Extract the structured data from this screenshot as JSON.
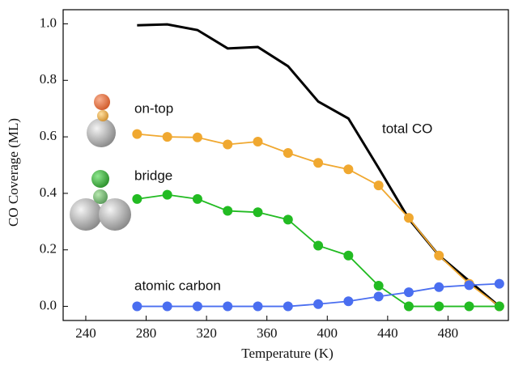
{
  "chart_data": {
    "type": "line",
    "x_label": "Temperature (K)",
    "y_label": "CO Coverage (ML)",
    "x": [
      274,
      294,
      314,
      334,
      354,
      374,
      394,
      414,
      434,
      454,
      474,
      494,
      514
    ],
    "xlim": [
      225,
      520
    ],
    "xticks": [
      240,
      280,
      320,
      360,
      400,
      440,
      480
    ],
    "ylim": [
      -0.05,
      1.05
    ],
    "yticks": [
      {
        "value": 0,
        "label": "0.0"
      },
      0.2,
      0.4,
      0.6,
      0.8,
      {
        "value": 1,
        "label": "1.0"
      }
    ],
    "series": [
      {
        "name": "total CO",
        "color": "#000000",
        "markers": false,
        "values": [
          0.995,
          0.998,
          0.978,
          0.913,
          0.918,
          0.85,
          0.725,
          0.665,
          0.49,
          0.31,
          0.18,
          0.09,
          0.0
        ]
      },
      {
        "name": "on-top",
        "color": "#f0a830",
        "label_color": "#e8703a",
        "markers": true,
        "values": [
          0.61,
          0.6,
          0.598,
          0.573,
          0.583,
          0.543,
          0.508,
          0.485,
          0.428,
          0.313,
          0.18,
          0.08,
          0.0
        ]
      },
      {
        "name": "bridge",
        "color": "#22bb22",
        "label_color": "#2a8a2a",
        "markers": true,
        "values": [
          0.38,
          0.395,
          0.38,
          0.338,
          0.333,
          0.307,
          0.215,
          0.18,
          0.073,
          0.0,
          0.0,
          0.0,
          0.0
        ]
      },
      {
        "name": "atomic carbon",
        "color": "#4a6ef0",
        "label_color": "#3355dd",
        "markers": true,
        "values": [
          0.0,
          0.0,
          0.0,
          0.0,
          0.0,
          0.0,
          0.008,
          0.018,
          0.035,
          0.05,
          0.068,
          0.075,
          0.08
        ]
      }
    ]
  }
}
